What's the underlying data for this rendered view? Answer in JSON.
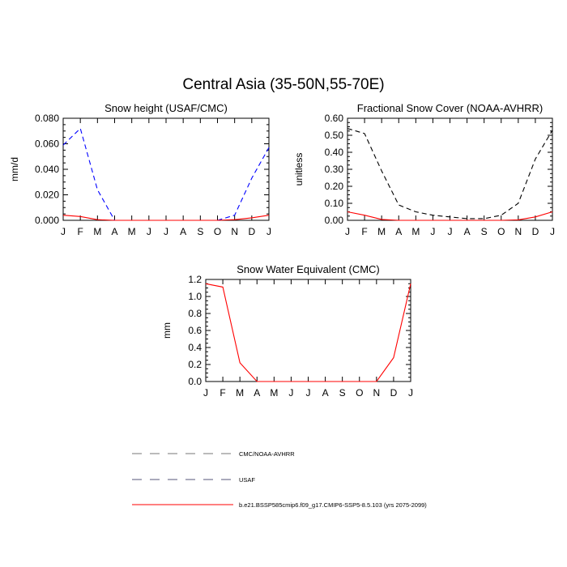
{
  "title": "Central Asia (35-50N,55-70E)",
  "chart_data": [
    {
      "type": "line",
      "title": "Snow height (USAF/CMC)",
      "ylabel": "mm/d",
      "xlabel": "",
      "categories": [
        "J",
        "F",
        "M",
        "A",
        "M",
        "J",
        "J",
        "A",
        "S",
        "O",
        "N",
        "D",
        "J"
      ],
      "ylim": [
        0,
        0.08
      ],
      "yticks": [
        "0.000",
        "0.020",
        "0.040",
        "0.060",
        "0.080"
      ],
      "tick_values": [
        0,
        0.02,
        0.04,
        0.06,
        0.08
      ],
      "series": [
        {
          "ref": "USAF",
          "color": "#0000ff",
          "style": "dashed",
          "values": [
            0.059,
            0.072,
            0.024,
            0.0,
            null,
            null,
            null,
            null,
            null,
            0.0,
            0.004,
            0.033,
            0.057
          ]
        },
        {
          "ref": "model",
          "color": "#ff0000",
          "style": "solid",
          "values": [
            0.004,
            0.003,
            0.0005,
            0.0,
            0.0,
            0.0,
            0.0,
            0.0,
            0.0,
            0.0,
            0.0005,
            0.002,
            0.004
          ]
        }
      ]
    },
    {
      "type": "line",
      "title": "Fractional Snow Cover (NOAA-AVHRR)",
      "ylabel": "unitless",
      "xlabel": "",
      "categories": [
        "J",
        "F",
        "M",
        "A",
        "M",
        "J",
        "J",
        "A",
        "S",
        "O",
        "N",
        "D",
        "J"
      ],
      "ylim": [
        0,
        0.6
      ],
      "yticks": [
        "0.00",
        "0.10",
        "0.20",
        "0.30",
        "0.40",
        "0.50",
        "0.60"
      ],
      "tick_values": [
        0,
        0.1,
        0.2,
        0.3,
        0.4,
        0.5,
        0.6
      ],
      "series": [
        {
          "ref": "CMC/NOAA-AVHRR",
          "color": "#000000",
          "style": "dashed",
          "values": [
            0.54,
            0.51,
            0.29,
            0.09,
            0.05,
            0.03,
            0.02,
            0.01,
            0.01,
            0.03,
            0.1,
            0.36,
            0.53
          ]
        },
        {
          "ref": "model",
          "color": "#ff0000",
          "style": "solid",
          "values": [
            0.05,
            0.03,
            0.005,
            0.0,
            0.0,
            0.0,
            0.0,
            0.0,
            0.0,
            0.0,
            0.003,
            0.02,
            0.05
          ]
        }
      ]
    },
    {
      "type": "line",
      "title": "Snow Water Equivalent (CMC)",
      "ylabel": "mm",
      "xlabel": "",
      "categories": [
        "J",
        "F",
        "M",
        "A",
        "M",
        "J",
        "J",
        "A",
        "S",
        "O",
        "N",
        "D",
        "J"
      ],
      "ylim": [
        0,
        1.2
      ],
      "yticks": [
        "0.0",
        "0.2",
        "0.4",
        "0.6",
        "0.8",
        "1.0",
        "1.2"
      ],
      "tick_values": [
        0,
        0.2,
        0.4,
        0.6,
        0.8,
        1.0,
        1.2
      ],
      "series": [
        {
          "ref": "CMC/NOAA-AVHRR",
          "color": "#000000",
          "style": "dashed",
          "values": [
            0,
            0,
            0,
            0,
            0,
            0,
            0,
            0,
            0,
            0,
            0,
            0,
            0
          ]
        },
        {
          "ref": "model",
          "color": "#ff0000",
          "style": "solid",
          "values": [
            1.15,
            1.11,
            0.22,
            0.0,
            0.0,
            0.0,
            0.0,
            0.0,
            0.0,
            0.0,
            0.0,
            0.28,
            1.15
          ]
        }
      ]
    }
  ],
  "legend": [
    {
      "label": "CMC/NOAA-AVHRR",
      "color": "#000000",
      "style": "dashed"
    },
    {
      "label": "USAF",
      "color": "#0000ff",
      "style": "dashed"
    },
    {
      "label": "b.e21.BSSP585cmip6.f09_g17.CMIP6-SSP5-8.5.103 (yrs 2075-2099)",
      "color": "#ff0000",
      "style": "solid"
    }
  ]
}
